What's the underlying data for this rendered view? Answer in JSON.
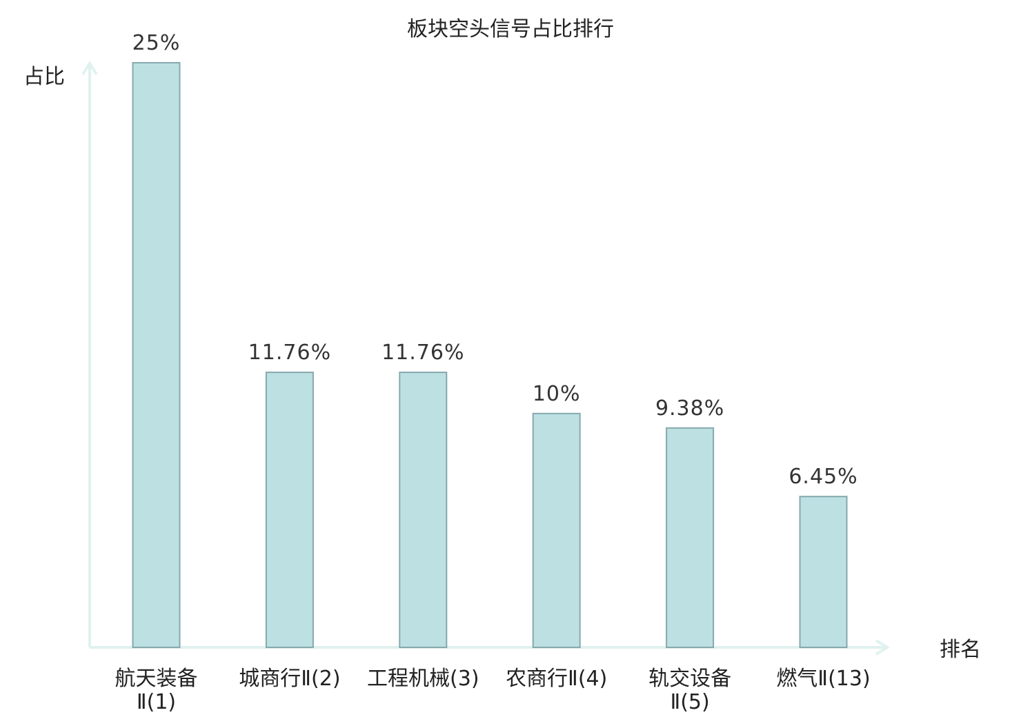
{
  "chart_data": {
    "type": "bar",
    "title": "板块空头信号占比排行",
    "ylabel": "占比",
    "xlabel": "排名",
    "ylim": [
      0,
      25
    ],
    "categories": [
      "航天装备Ⅱ(1)",
      "城商行Ⅱ(2)",
      "工程机械(3)",
      "农商行Ⅱ(4)",
      "轨交设备Ⅱ(5)",
      "燃气Ⅱ(13)"
    ],
    "category_lines": [
      [
        "航天装备",
        "Ⅱ(1)"
      ],
      [
        "城商行Ⅱ(2)"
      ],
      [
        "工程机械(3)"
      ],
      [
        "农商行Ⅱ(4)"
      ],
      [
        "轨交设备",
        "Ⅱ(5)"
      ],
      [
        "燃气Ⅱ(13)"
      ]
    ],
    "values": [
      25,
      11.76,
      11.76,
      10,
      9.38,
      6.45
    ],
    "value_labels": [
      "25%",
      "11.76%",
      "11.76%",
      "10%",
      "9.38%",
      "6.45%"
    ],
    "highlight_index": 5,
    "grid": false,
    "legend": "none"
  },
  "colors": {
    "bar_fill": "#bde0e3",
    "bar_stroke": "#86a8ad",
    "axis": "#dff2ef",
    "highlight_text": "#e02020",
    "text": "#222222",
    "value_text": "#333333"
  }
}
